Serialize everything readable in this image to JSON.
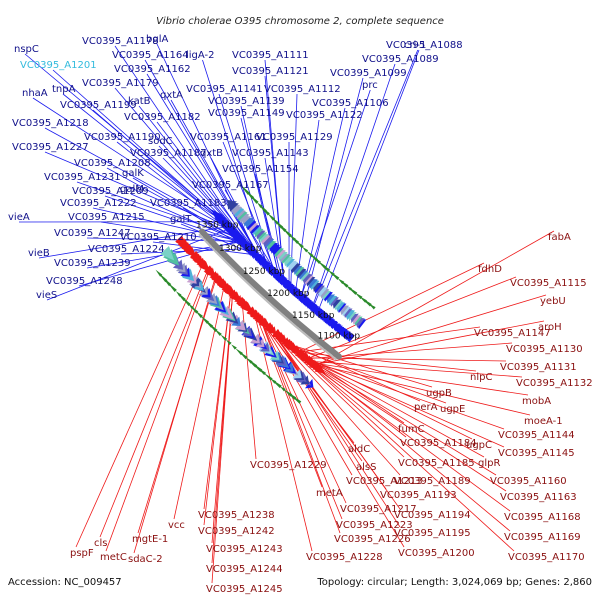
{
  "map_title": "Vibrio cholerae O395 chromosome 2, complete sequence",
  "footer": {
    "accession": "Accession: NC_009457",
    "summary": "Topology: circular; Length: 3,024,069 bp; Genes: 2,860"
  },
  "ticks": [
    "1100 kbp",
    "1150 kbp",
    "1200 kbp",
    "1250 kbp",
    "1300 kbp",
    "1350 kbp"
  ],
  "colors": {
    "forward_strand": "#1a1aee",
    "reverse_strand": "#ee1a1a",
    "selected_label": "#33bbdd",
    "backbone": "#808080",
    "gc_skew": "#2a8a2a"
  },
  "forward_labels": [
    "nspC",
    "VC0395_A1201",
    "nhaA",
    "tnpA",
    "VC0395_A1218",
    "VC0395_A1227",
    "vieA",
    "vieB",
    "vieS",
    "VC0395_A1178",
    "VC0395_A1164",
    "VC0395_A1179",
    "VC0395_A1199",
    "VC0395_A1190",
    "VC0395_A1208",
    "VC0395_A1231",
    "VC0395_A1209",
    "VC0395_A1222",
    "VC0395_A1215",
    "VC0395_A1247",
    "VC0395_A1224",
    "VC0395_A1239",
    "VC0395_A1248",
    "VC0395_A1210",
    "VC0395_A1183",
    "VC0395_A1167",
    "VC0395_A1154",
    "VC0395_A1143",
    "VC0395_A1129",
    "VC0395_A1122",
    "VC0395_A1106",
    "VC0395_A1099",
    "VC0395_A1089",
    "VC0395_A1088",
    "VC0395_A1111",
    "VC0395_A1121",
    "VC0395_A1112",
    "VC0395_A1141",
    "VC0395_A1139",
    "VC0395_A1149",
    "VC0395_A1161",
    "VC0395_A1182",
    "VC0395_A1187",
    "VC0395_A1162",
    "bglA",
    "ligA-2",
    "qxtA",
    "katB",
    "sodC",
    "qxtB",
    "galK",
    "galM",
    "galT",
    "prc",
    "cri-1"
  ],
  "reverse_labels": [
    "fabA",
    "VC0395_A1115",
    "yebU",
    "aroH",
    "fdhD",
    "VC0395_A1147",
    "VC0395_A1130",
    "VC0395_A1131",
    "VC0395_A1132",
    "mobA",
    "moeA-1",
    "nlpC",
    "VC0395_A1144",
    "VC0395_A1145",
    "ugpB",
    "ugpE",
    "ugpC",
    "glpR",
    "VC0395_A1160",
    "VC0395_A1163",
    "VC0395_A1168",
    "VC0395_A1169",
    "VC0395_A1170",
    "perA",
    "fumC",
    "aldC",
    "alsS",
    "VC0395_A1184",
    "VC0395_A1185",
    "VC0395_A1189",
    "VC0395_A1193",
    "VC0395_A1194",
    "VC0395_A1195",
    "VC0395_A1200",
    "VC0395_A1213",
    "VC0395_A1217",
    "VC0395_A1223",
    "VC0395_A1226",
    "VC0395_A1228",
    "metA",
    "VC0395_A1229",
    "VC0395_A1238",
    "VC0395_A1242",
    "VC0395_A1243",
    "VC0395_A1244",
    "VC0395_A1245",
    "vcc",
    "mgtE-1",
    "sdaC-2",
    "cls",
    "metC",
    "pspF"
  ]
}
